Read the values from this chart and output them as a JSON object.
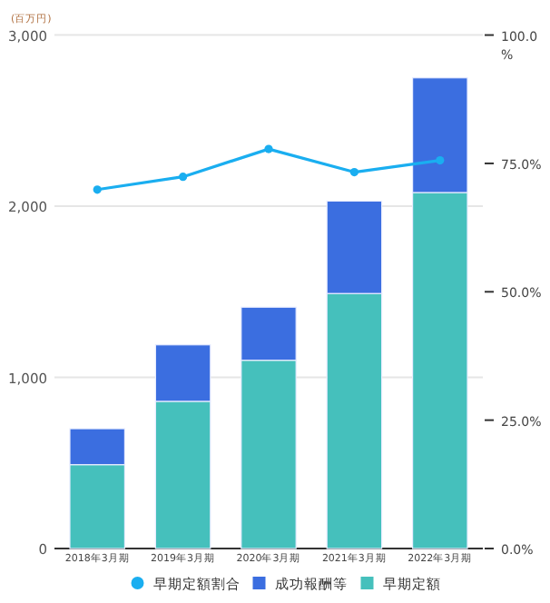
{
  "chart_data": {
    "type": "bar",
    "stacked": true,
    "ylabel": "(百万円)",
    "categories": [
      "2018年3月期",
      "2019年3月期",
      "2020年3月期",
      "2021年3月期",
      "2022年3月期"
    ],
    "series": [
      {
        "name": "早期定額割合",
        "type": "line",
        "axis": "y2",
        "color": "#1aaef0",
        "marker": "circle",
        "values": [
          69.9,
          72.4,
          77.8,
          73.3,
          75.6
        ]
      },
      {
        "name": "成功報酬等",
        "color": "#3b6ee0",
        "values": [
          210,
          330,
          310,
          540,
          670
        ]
      },
      {
        "name": "早期定額",
        "color": "#45c0bc",
        "values": [
          490,
          860,
          1100,
          1490,
          2080
        ]
      }
    ],
    "ylim": [
      0,
      3000
    ],
    "yticks": [
      0,
      {
        "value": 1000,
        "label": "1,000"
      },
      {
        "value": 2000,
        "label": "2,000"
      },
      {
        "value": 3000,
        "label": "3,000"
      }
    ],
    "y2lim": [
      0,
      100
    ],
    "y2ticks": [
      {
        "value": 0,
        "label": "0.0%"
      },
      {
        "value": 25,
        "label": "25.0%"
      },
      {
        "value": 50,
        "label": "50.0%"
      },
      {
        "value": 75,
        "label": "75.0%"
      },
      {
        "value": 100,
        "label": "100.0%"
      }
    ],
    "grid": "y",
    "legend": "bottom"
  }
}
